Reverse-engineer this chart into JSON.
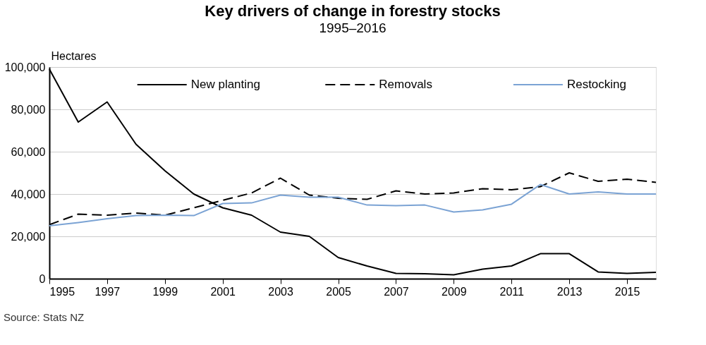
{
  "chart_data": {
    "type": "line",
    "title": "Key drivers of change in forestry stocks",
    "subtitle": "1995–2016",
    "ylabel": "Hectares",
    "x": [
      1995,
      1996,
      1997,
      1998,
      1999,
      2000,
      2001,
      2002,
      2003,
      2004,
      2005,
      2006,
      2007,
      2008,
      2009,
      2010,
      2011,
      2012,
      2013,
      2014,
      2015,
      2016
    ],
    "series": [
      {
        "name": "New planting",
        "color": "#000000",
        "line_style": "solid",
        "values": [
          99000,
          74000,
          83500,
          63500,
          51000,
          40000,
          33500,
          30000,
          22000,
          20000,
          10000,
          6000,
          2500,
          2300,
          1800,
          4500,
          6000,
          11800,
          11800,
          3200,
          2500,
          3000
        ]
      },
      {
        "name": "Removals",
        "color": "#000000",
        "line_style": "dashed",
        "values": [
          25500,
          30500,
          30000,
          31000,
          30000,
          33500,
          37000,
          40500,
          47500,
          39500,
          38000,
          37500,
          41500,
          40000,
          40500,
          42500,
          42000,
          43500,
          50000,
          46000,
          47000,
          45500
        ]
      },
      {
        "name": "Restocking",
        "color": "#7ba3d4",
        "line_style": "solid",
        "values": [
          25000,
          26500,
          28300,
          29800,
          30000,
          29800,
          35500,
          35800,
          39500,
          38500,
          38500,
          34800,
          34500,
          34800,
          31500,
          32500,
          35200,
          44500,
          40000,
          41000,
          40000,
          40000
        ]
      }
    ],
    "xlim": [
      1995,
      2016
    ],
    "xticks": [
      1995,
      1997,
      1999,
      2001,
      2003,
      2005,
      2007,
      2009,
      2011,
      2013,
      2015
    ],
    "ylim": [
      0,
      100000
    ],
    "yticks": [
      0,
      {
        "value": 20000,
        "label": "20,000"
      },
      {
        "value": 40000,
        "label": "40,000"
      },
      {
        "value": 60000,
        "label": "60,000"
      },
      {
        "value": 80000,
        "label": "80,000"
      },
      {
        "value": 100000,
        "label": "100,000"
      }
    ],
    "grid": "y",
    "legend": "top",
    "marker": "none",
    "annotations": [
      "Source:  Stats NZ"
    ]
  }
}
